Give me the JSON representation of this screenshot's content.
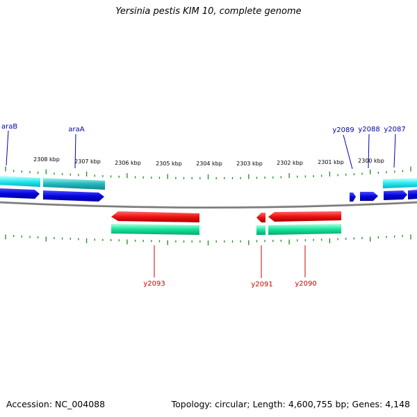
{
  "title": "Yersinia pestis KIM 10, complete genome",
  "footer": {
    "accession": "Accession: NC_004088",
    "summary": "Topology: circular; Length: 4,600,755 bp; Genes: 4,148"
  },
  "scale_labels": [
    "2308 kbp",
    "2307 kbp",
    "2306 kbp",
    "2305 kbp",
    "2304 kbp",
    "2303 kbp",
    "2302 kbp",
    "2301 kbp",
    "2300 kbp"
  ],
  "forward_genes": [
    "araB",
    "araA",
    "y2089",
    "y2088",
    "y2087"
  ],
  "reverse_genes": [
    "y2093",
    "y2091",
    "y2090"
  ],
  "colors": {
    "forward_gene": "#0a0ae6",
    "forward_cds": "#1ee6ee",
    "reverse_gene": "#ee1111",
    "reverse_cds": "#14e29a",
    "tick": "#1a8a1a",
    "backbone": "#808080",
    "forward_label": "#0000aa",
    "reverse_label": "#cc0000"
  }
}
